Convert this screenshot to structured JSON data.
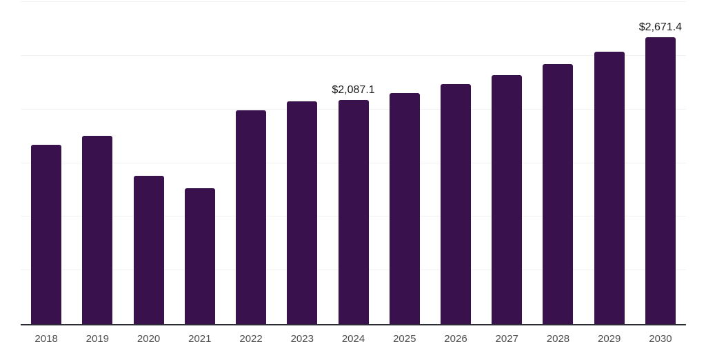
{
  "chart_data": {
    "type": "bar",
    "title": "",
    "xlabel": "",
    "ylabel": "",
    "categories": [
      "2018",
      "2019",
      "2020",
      "2021",
      "2022",
      "2023",
      "2024",
      "2025",
      "2026",
      "2027",
      "2028",
      "2029",
      "2030"
    ],
    "values": [
      1673,
      1751,
      1381,
      1264,
      1992,
      2074,
      2087.1,
      2151,
      2236,
      2321,
      2423,
      2540,
      2671.4
    ],
    "data_labels": [
      "",
      "",
      "",
      "",
      "",
      "",
      "$2,087.1",
      "",
      "",
      "",
      "",
      "",
      "$2,671.4"
    ],
    "ylim": [
      0,
      3000
    ],
    "gridline_interval": 500,
    "grid": "horizontal",
    "legend": "none",
    "unit_prefix": "$",
    "colors": {
      "bar": "#38114d",
      "gridline": "#f2f2f2",
      "axis_line": "#2d2d35",
      "tick_label": "#4d4d4d",
      "data_label": "#1a1a1a",
      "background": "#ffffff"
    }
  }
}
